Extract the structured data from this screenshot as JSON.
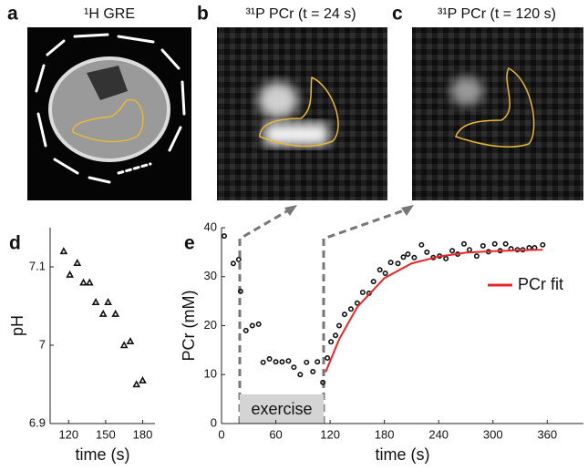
{
  "images": [
    {
      "label": "a",
      "title": "¹H GRE"
    },
    {
      "label": "b",
      "title": "³¹P PCr (t = 24 s)"
    },
    {
      "label": "c",
      "title": "³¹P PCr (t = 120 s)"
    }
  ],
  "chart_data": [
    {
      "type": "scatter",
      "label": "d",
      "xlabel": "time (s)",
      "ylabel": "pH",
      "xlim": [
        105,
        190
      ],
      "ylim": [
        6.9,
        7.15
      ],
      "xticks": [
        120,
        150,
        180
      ],
      "yticks": [
        6.9,
        7,
        7.1
      ],
      "series": [
        {
          "marker": "triangle",
          "color": "#111111",
          "x": [
            116,
            121,
            127,
            132,
            137,
            142,
            148,
            152,
            158,
            165,
            170,
            175,
            180
          ],
          "values": [
            7.12,
            7.09,
            7.105,
            7.08,
            7.08,
            7.055,
            7.04,
            7.055,
            7.04,
            7.0,
            7.005,
            6.95,
            6.955
          ]
        }
      ]
    },
    {
      "type": "scatter",
      "label": "e",
      "xlabel": "time (s)",
      "ylabel": "PCr (mM)",
      "xlim": [
        0,
        400
      ],
      "ylim": [
        0,
        40
      ],
      "xticks": [
        0,
        60,
        120,
        180,
        240,
        300,
        360
      ],
      "yticks": [
        0,
        10,
        20,
        30,
        40
      ],
      "shaded_span": {
        "label": "exercise",
        "x": [
          20,
          113
        ]
      },
      "series": [
        {
          "marker": "circle",
          "color": "#111111",
          "x": [
            3,
            13,
            19,
            21,
            27,
            34,
            41,
            46,
            53,
            60,
            67,
            74,
            80,
            87,
            94,
            101,
            106,
            112,
            117,
            121,
            126,
            130,
            136,
            143,
            150,
            156,
            163,
            168,
            175,
            181,
            187,
            195,
            201,
            206,
            213,
            221,
            227,
            234,
            241,
            248,
            255,
            261,
            268,
            274,
            282,
            289,
            295,
            302,
            308,
            314,
            320,
            327,
            333,
            340,
            346,
            355
          ],
          "values": [
            38.3,
            32.7,
            33.5,
            27,
            19,
            20,
            20.3,
            12.5,
            13.2,
            12.6,
            12.6,
            12.8,
            11.5,
            10,
            12.5,
            10.6,
            12.6,
            8.4,
            13.4,
            16.7,
            18,
            20,
            22.3,
            23.4,
            24.6,
            26.8,
            26.6,
            29,
            31.4,
            30.7,
            32.9,
            32.7,
            34,
            34.6,
            33.9,
            36.5,
            35,
            33.9,
            34.2,
            33.7,
            35.3,
            34.6,
            36.7,
            35.5,
            34.2,
            36.3,
            35.1,
            36.7,
            35.3,
            36.7,
            35.7,
            35.5,
            35.5,
            35.9,
            35.9,
            36.5
          ]
        },
        {
          "name": "PCr fit",
          "marker": "line",
          "color": "#e8262a",
          "x": [
            115,
            130,
            150,
            180,
            210,
            240,
            270,
            300,
            330,
            355
          ],
          "values": [
            10.5,
            17.2,
            23.8,
            29.7,
            32.7,
            34.1,
            34.9,
            35.2,
            35.4,
            35.5
          ]
        }
      ]
    }
  ]
}
